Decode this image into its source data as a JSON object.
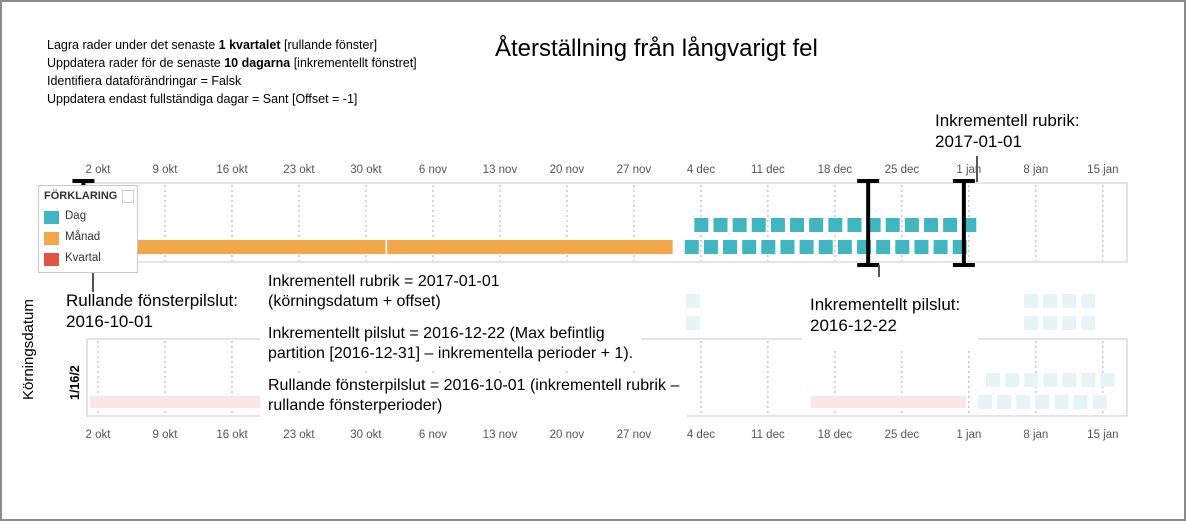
{
  "title": "Återställning från långvarigt fel",
  "settings": {
    "line1_pre": "Lagra rader under det senaste ",
    "line1_bold": "1 kvartalet",
    "line1_post": "  [rullande fönster]",
    "line2_pre": "Uppdatera rader för de senaste ",
    "line2_bold": "10 dagarna",
    "line2_post": " [inkrementellt fönstret]",
    "line3": "Identifiera dataförändringar = Falsk",
    "line4": "Uppdatera endast fullständiga dagar = Sant [Offset = -1]"
  },
  "labels": {
    "incremental_header_top_1": "Inkrementell rubrik:",
    "incremental_header_top_2": "2017-01-01",
    "rolling_end_1": "Rullande fönsterpilslut:",
    "rolling_end_2": "2016-10-01",
    "incremental_end_1": "Inkrementellt pilslut:",
    "incremental_end_2": "2016-12-22"
  },
  "annotations": {
    "a1_line1": "Inkrementell rubrik = 2017-01-01",
    "a1_line2": "(körningsdatum + offset)",
    "a2_line1": "Inkrementellt pilslut = 2016-12-22 (Max befintlig",
    "a2_line2": "partition [2016-12-31] – inkrementella perioder + 1).",
    "a3_line1": "Rullande fönsterpilslut = 2016-10-01 (inkrementell rubrik –",
    "a3_line2": "rullande fönsterperioder)"
  },
  "legend": {
    "title": "FÖRKLARING",
    "items": [
      {
        "label": "Dag",
        "color": "#3fb6c2"
      },
      {
        "label": "Månad",
        "color": "#f2a84a"
      },
      {
        "label": "Kvartal",
        "color": "#e35444"
      }
    ]
  },
  "axis_title": "Körningsdatum",
  "row_label": "1/16/2",
  "chart_data": {
    "type": "timeline",
    "x_ticks": [
      "2 okt",
      "9 okt",
      "16 okt",
      "23 okt",
      "30 okt",
      "6 nov",
      "13 nov",
      "20 nov",
      "27 nov",
      "4 dec",
      "11 dec",
      "18 dec",
      "25 dec",
      "1 jan",
      "8 jan",
      "15 jan"
    ],
    "tick_dates": [
      "2016-10-02",
      "2016-10-09",
      "2016-10-16",
      "2016-10-23",
      "2016-10-30",
      "2016-11-06",
      "2016-11-13",
      "2016-11-20",
      "2016-11-27",
      "2016-12-04",
      "2016-12-11",
      "2016-12-18",
      "2016-12-25",
      "2017-01-01",
      "2017-01-08",
      "2017-01-15"
    ],
    "x_range": [
      "2016-10-01",
      "2017-01-16"
    ],
    "month_partitions": [
      {
        "start": "2016-10-01",
        "end": "2016-10-31"
      },
      {
        "start": "2016-11-01",
        "end": "2016-11-30"
      }
    ],
    "day_partitions_row1": {
      "start": "2016-12-03",
      "end": "2016-12-31"
    },
    "day_partitions_row2": {
      "start": "2016-12-02",
      "end": "2016-12-31"
    },
    "markers": [
      {
        "label": "Rullande fönsterpilslut",
        "date": "2016-10-01"
      },
      {
        "label": "Inkrementellt pilslut",
        "date": "2016-12-22"
      },
      {
        "label": "Inkrementell rubrik",
        "date": "2017-01-01"
      }
    ]
  }
}
